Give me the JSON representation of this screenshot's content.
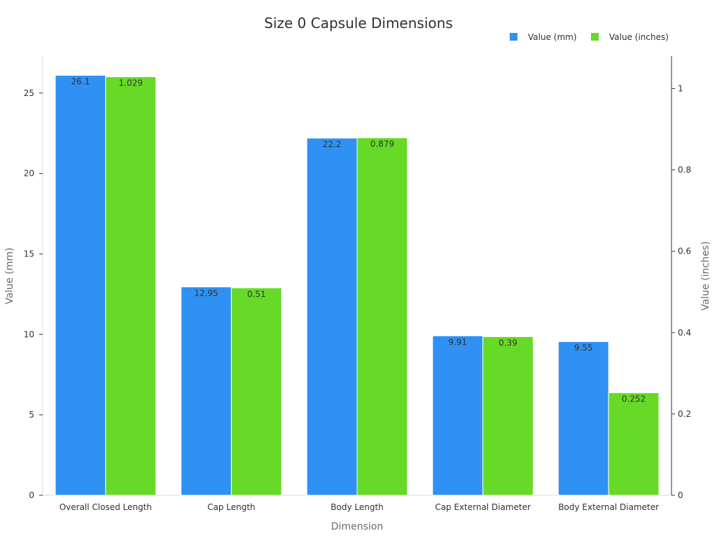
{
  "chart_data": {
    "type": "bar",
    "title": "Size 0 Capsule Dimensions",
    "xlabel": "Dimension",
    "ylabel": "Value (mm)",
    "y2label": "Value (inches)",
    "categories": [
      "Overall Closed Length",
      "Cap Length",
      "Body Length",
      "Cap External Diameter",
      "Body External Diameter"
    ],
    "series": [
      {
        "name": "Value (mm)",
        "axis": "left",
        "color": "#2f91f3",
        "values": [
          26.1,
          12.95,
          22.2,
          9.91,
          9.55
        ],
        "labels": [
          "26.1",
          "12.95",
          "22.2",
          "9.91",
          "9.55"
        ]
      },
      {
        "name": "Value (inches)",
        "axis": "right",
        "color": "#66da26",
        "values": [
          1.029,
          0.51,
          0.879,
          0.39,
          0.252
        ],
        "labels": [
          "1.029",
          "0.51",
          "0.879",
          "0.39",
          "0.252"
        ]
      }
    ],
    "ylim": [
      0,
      27.3
    ],
    "y2lim": [
      0,
      1.08
    ],
    "yticks": [
      0,
      5,
      10,
      15,
      20,
      25
    ],
    "ytick_labels": [
      "0",
      "5",
      "10",
      "15",
      "20",
      "25"
    ],
    "y2ticks": [
      0,
      0.2,
      0.4,
      0.6,
      0.8,
      1
    ],
    "y2tick_labels": [
      "0",
      "0.2",
      "0.4",
      "0.6",
      "0.8",
      "1"
    ],
    "legend_position": "top-right",
    "grid": false
  }
}
